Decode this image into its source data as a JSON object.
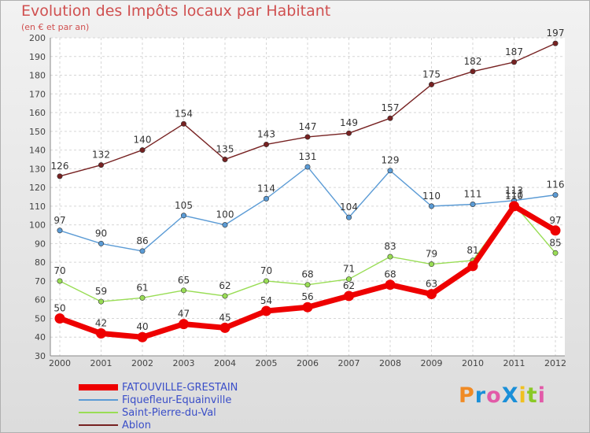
{
  "title": "Evolution des Impôts locaux par Habitant",
  "subtitle": "(en € et par an)",
  "brand": "ProXiti",
  "chart_data": {
    "type": "line",
    "title": "Evolution des Impôts locaux par Habitant",
    "subtitle": "(en € et par an)",
    "xlabel": "",
    "ylabel": "",
    "ylim": [
      30,
      200
    ],
    "yticks": [
      30,
      40,
      50,
      60,
      70,
      80,
      90,
      100,
      110,
      120,
      130,
      140,
      150,
      160,
      170,
      180,
      190,
      200
    ],
    "grid": true,
    "legend": "bottom-left",
    "categories": [
      "2000",
      "2001",
      "2002",
      "2003",
      "2004",
      "2005",
      "2006",
      "2007",
      "2008",
      "2009",
      "2010",
      "2011",
      "2012"
    ],
    "series": [
      {
        "name": "FATOUVILLE-GRESTAIN",
        "color": "#ee0000",
        "values": [
          50,
          42,
          40,
          47,
          45,
          54,
          56,
          62,
          68,
          63,
          78,
          110,
          97
        ],
        "labels": [
          "50",
          "42",
          "40",
          "47",
          "45",
          "54",
          "56",
          "62",
          "68",
          "63",
          "",
          "110",
          "97"
        ]
      },
      {
        "name": "Fiquefleur-Equainville",
        "color": "#5b9bd5",
        "values": [
          97,
          90,
          86,
          105,
          100,
          114,
          131,
          104,
          129,
          110,
          111,
          113,
          116
        ],
        "labels": [
          "97",
          "90",
          "86",
          "105",
          "100",
          "114",
          "131",
          "104",
          "129",
          "110",
          "111",
          "113",
          "116"
        ]
      },
      {
        "name": "Saint-Pierre-du-Val",
        "color": "#99dd55",
        "values": [
          70,
          59,
          61,
          65,
          62,
          70,
          68,
          71,
          83,
          79,
          81,
          111,
          85
        ],
        "labels": [
          "70",
          "59",
          "61",
          "65",
          "62",
          "70",
          "68",
          "71",
          "83",
          "79",
          "81",
          "111",
          "85"
        ]
      },
      {
        "name": "Ablon",
        "color": "#772222",
        "values": [
          126,
          132,
          140,
          154,
          135,
          143,
          147,
          149,
          157,
          175,
          182,
          187,
          197
        ],
        "labels": [
          "126",
          "132",
          "140",
          "154",
          "135",
          "143",
          "147",
          "149",
          "157",
          "175",
          "182",
          "187",
          "197"
        ]
      }
    ]
  }
}
